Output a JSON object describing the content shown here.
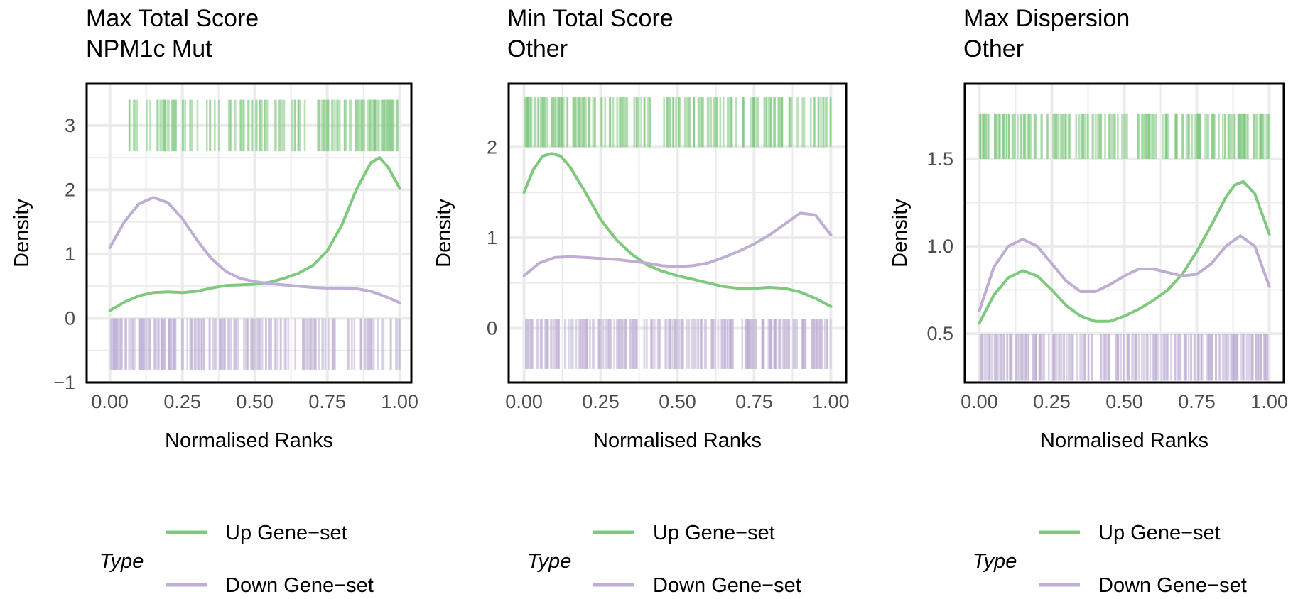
{
  "colors": {
    "up": "#7fc97f",
    "down": "#beaed4",
    "grid": "#ebebeb",
    "frame": "#000000"
  },
  "chart_data": [
    {
      "type": "density",
      "title_lines": [
        "Max Total Score",
        "NPM1c Mut"
      ],
      "xlabel": "Normalised Ranks",
      "ylabel": "Density",
      "xlim": [
        -0.08,
        1.04
      ],
      "ylim": [
        -1.0,
        3.65
      ],
      "x_ticks": [
        0.0,
        0.25,
        0.5,
        0.75,
        1.0
      ],
      "x_tick_labels": [
        "0.00",
        "0.25",
        "0.50",
        "0.75",
        "1.00"
      ],
      "y_ticks": [
        -1,
        0,
        1,
        2,
        3
      ],
      "y_tick_labels": [
        "−1",
        "0",
        "1",
        "2",
        "3"
      ],
      "grid": true,
      "rug_up": {
        "y_range": [
          2.6,
          3.4
        ],
        "x_range": [
          0.06,
          1.0
        ],
        "density_weights": [
          0.25,
          0.6,
          0.25,
          0.3,
          0.5,
          0.35,
          0.3,
          0.7,
          0.6,
          1.0
        ]
      },
      "rug_down": {
        "y_range": [
          -0.8,
          0.0
        ],
        "x_range": [
          0.0,
          1.0
        ],
        "density_weights": [
          1.0,
          1.0,
          0.9,
          0.8,
          0.65,
          0.6,
          0.55,
          0.5,
          0.5,
          0.45
        ]
      },
      "series": [
        {
          "name": "Up Gene−set",
          "x": [
            0.0,
            0.05,
            0.1,
            0.15,
            0.2,
            0.25,
            0.3,
            0.35,
            0.4,
            0.45,
            0.5,
            0.55,
            0.6,
            0.65,
            0.7,
            0.75,
            0.8,
            0.85,
            0.9,
            0.93,
            0.96,
            1.0
          ],
          "y": [
            0.12,
            0.25,
            0.35,
            0.4,
            0.41,
            0.4,
            0.42,
            0.47,
            0.51,
            0.52,
            0.53,
            0.56,
            0.62,
            0.7,
            0.82,
            1.05,
            1.45,
            2.0,
            2.42,
            2.5,
            2.35,
            2.02
          ]
        },
        {
          "name": "Down Gene−set",
          "x": [
            0.0,
            0.05,
            0.1,
            0.15,
            0.2,
            0.25,
            0.3,
            0.35,
            0.4,
            0.45,
            0.5,
            0.55,
            0.6,
            0.65,
            0.7,
            0.75,
            0.8,
            0.85,
            0.9,
            0.95,
            1.0
          ],
          "y": [
            1.1,
            1.5,
            1.78,
            1.88,
            1.8,
            1.55,
            1.22,
            0.93,
            0.73,
            0.62,
            0.57,
            0.54,
            0.52,
            0.5,
            0.48,
            0.47,
            0.47,
            0.46,
            0.42,
            0.34,
            0.24
          ]
        }
      ]
    },
    {
      "type": "density",
      "title_lines": [
        "Min Total Score",
        "Other"
      ],
      "xlabel": "Normalised Ranks",
      "ylabel": "Density",
      "xlim": [
        -0.05,
        1.05
      ],
      "ylim": [
        -0.6,
        2.7
      ],
      "x_ticks": [
        0.0,
        0.25,
        0.5,
        0.75,
        1.0
      ],
      "x_tick_labels": [
        "0.00",
        "0.25",
        "0.50",
        "0.75",
        "1.00"
      ],
      "y_ticks": [
        0,
        1,
        2
      ],
      "y_tick_labels": [
        "0",
        "1",
        "2"
      ],
      "grid": true,
      "rug_up": {
        "y_range": [
          2.0,
          2.55
        ],
        "x_range": [
          0.0,
          1.0
        ],
        "density_weights": [
          1.0,
          1.0,
          0.55,
          0.7,
          0.5,
          0.6,
          0.55,
          0.6,
          0.7,
          0.55
        ]
      },
      "rug_down": {
        "y_range": [
          -0.45,
          0.1
        ],
        "x_range": [
          0.0,
          1.0
        ],
        "density_weights": [
          0.8,
          0.7,
          0.7,
          0.75,
          0.7,
          0.7,
          0.85,
          0.95,
          1.0,
          1.0
        ]
      },
      "series": [
        {
          "name": "Up Gene−set",
          "x": [
            0.0,
            0.03,
            0.06,
            0.09,
            0.12,
            0.15,
            0.2,
            0.25,
            0.3,
            0.35,
            0.4,
            0.45,
            0.5,
            0.55,
            0.6,
            0.65,
            0.7,
            0.75,
            0.8,
            0.85,
            0.9,
            0.95,
            1.0
          ],
          "y": [
            1.5,
            1.75,
            1.9,
            1.93,
            1.9,
            1.78,
            1.5,
            1.2,
            0.98,
            0.82,
            0.7,
            0.63,
            0.58,
            0.54,
            0.5,
            0.46,
            0.44,
            0.44,
            0.45,
            0.44,
            0.4,
            0.33,
            0.24
          ]
        },
        {
          "name": "Down Gene−set",
          "x": [
            0.0,
            0.05,
            0.1,
            0.15,
            0.2,
            0.25,
            0.3,
            0.35,
            0.4,
            0.45,
            0.5,
            0.55,
            0.6,
            0.65,
            0.7,
            0.75,
            0.8,
            0.85,
            0.9,
            0.95,
            1.0
          ],
          "y": [
            0.58,
            0.72,
            0.78,
            0.79,
            0.78,
            0.77,
            0.76,
            0.74,
            0.72,
            0.69,
            0.68,
            0.69,
            0.72,
            0.78,
            0.85,
            0.93,
            1.03,
            1.15,
            1.27,
            1.25,
            1.03
          ]
        }
      ]
    },
    {
      "type": "density",
      "title_lines": [
        "Max Dispersion",
        "Other"
      ],
      "xlabel": "Normalised Ranks",
      "ylabel": "Density",
      "xlim": [
        -0.05,
        1.05
      ],
      "ylim": [
        0.22,
        1.93
      ],
      "x_ticks": [
        0.0,
        0.25,
        0.5,
        0.75,
        1.0
      ],
      "x_tick_labels": [
        "0.00",
        "0.25",
        "0.50",
        "0.75",
        "1.00"
      ],
      "y_ticks": [
        0.5,
        1.0,
        1.5
      ],
      "y_tick_labels": [
        "0.5",
        "1.0",
        "1.5"
      ],
      "grid": true,
      "rug_up": {
        "y_range": [
          1.5,
          1.76
        ],
        "x_range": [
          0.0,
          1.0
        ],
        "density_weights": [
          1.0,
          0.8,
          0.6,
          0.55,
          0.6,
          0.7,
          0.55,
          0.8,
          0.75,
          1.0
        ]
      },
      "rug_down": {
        "y_range": [
          0.23,
          0.5
        ],
        "x_range": [
          0.0,
          1.0
        ],
        "density_weights": [
          0.9,
          1.0,
          0.7,
          0.6,
          0.65,
          0.7,
          0.75,
          0.8,
          0.95,
          1.0
        ]
      },
      "series": [
        {
          "name": "Up Gene−set",
          "x": [
            0.0,
            0.05,
            0.1,
            0.15,
            0.2,
            0.25,
            0.3,
            0.35,
            0.4,
            0.45,
            0.5,
            0.55,
            0.6,
            0.65,
            0.7,
            0.75,
            0.8,
            0.85,
            0.88,
            0.91,
            0.95,
            1.0
          ],
          "y": [
            0.56,
            0.72,
            0.82,
            0.86,
            0.83,
            0.75,
            0.66,
            0.6,
            0.57,
            0.57,
            0.6,
            0.64,
            0.69,
            0.75,
            0.84,
            0.97,
            1.12,
            1.28,
            1.35,
            1.37,
            1.3,
            1.07
          ]
        },
        {
          "name": "Down Gene−set",
          "x": [
            0.0,
            0.05,
            0.1,
            0.15,
            0.2,
            0.25,
            0.3,
            0.35,
            0.4,
            0.45,
            0.5,
            0.55,
            0.6,
            0.65,
            0.7,
            0.75,
            0.8,
            0.85,
            0.9,
            0.95,
            1.0
          ],
          "y": [
            0.63,
            0.88,
            1.0,
            1.04,
            1.0,
            0.9,
            0.8,
            0.74,
            0.74,
            0.78,
            0.83,
            0.87,
            0.87,
            0.85,
            0.83,
            0.84,
            0.9,
            1.0,
            1.06,
            1.0,
            0.77
          ]
        }
      ]
    }
  ],
  "legend": {
    "title": "Type",
    "items": [
      {
        "label": "Up Gene−set",
        "color": "#7fc97f"
      },
      {
        "label": "Down Gene−set",
        "color": "#beaed4"
      }
    ]
  }
}
